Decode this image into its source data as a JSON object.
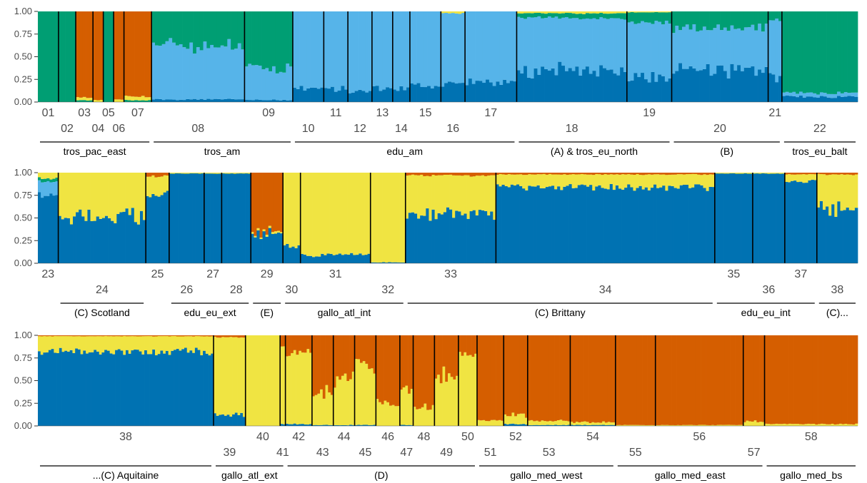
{
  "chart_data": {
    "type": "bar",
    "stacked": true,
    "normalized": true,
    "ylim": [
      0,
      1
    ],
    "yticks": [
      "1.00",
      "0.75",
      "0.50",
      "0.25",
      "0.00"
    ],
    "components": [
      {
        "color": "#0072B2"
      },
      {
        "color": "#56B4E9"
      },
      {
        "color": "#009E73"
      },
      {
        "color": "#F0E442"
      },
      {
        "color": "#D55E00"
      }
    ],
    "panels": [
      {
        "populations": [
          {
            "label": "01",
            "n": 6,
            "profile": [
              0.0,
              0.0,
              1.0,
              0.0,
              0.0
            ]
          },
          {
            "label": "02",
            "n": 5,
            "profile": [
              0.0,
              0.0,
              1.0,
              0.0,
              0.0
            ]
          },
          {
            "label": "03",
            "n": 5,
            "profile": [
              0.0,
              0.0,
              0.02,
              0.03,
              0.95
            ]
          },
          {
            "label": "04",
            "n": 3,
            "profile": [
              0.0,
              0.0,
              0.0,
              0.02,
              0.98
            ]
          },
          {
            "label": "05",
            "n": 3,
            "profile": [
              0.0,
              0.0,
              1.0,
              0.0,
              0.0
            ]
          },
          {
            "label": "06",
            "n": 3,
            "profile": [
              0.0,
              0.0,
              0.0,
              0.03,
              0.97
            ]
          },
          {
            "label": "07",
            "n": 8,
            "profile": [
              0.0,
              0.0,
              0.02,
              0.04,
              0.94
            ]
          },
          {
            "label": "08",
            "n": 27,
            "profile": [
              0.03,
              0.6,
              0.37,
              0.0,
              0.0
            ]
          },
          {
            "label": "09",
            "n": 14,
            "profile": [
              0.02,
              0.35,
              0.63,
              0.0,
              0.0
            ]
          },
          {
            "label": "10",
            "n": 9,
            "profile": [
              0.15,
              0.85,
              0.0,
              0.0,
              0.0
            ]
          },
          {
            "label": "11",
            "n": 7,
            "profile": [
              0.14,
              0.86,
              0.0,
              0.0,
              0.0
            ]
          },
          {
            "label": "12",
            "n": 7,
            "profile": [
              0.12,
              0.88,
              0.0,
              0.0,
              0.0
            ]
          },
          {
            "label": "13",
            "n": 6,
            "profile": [
              0.16,
              0.84,
              0.0,
              0.0,
              0.0
            ]
          },
          {
            "label": "14",
            "n": 5,
            "profile": [
              0.15,
              0.85,
              0.0,
              0.0,
              0.0
            ]
          },
          {
            "label": "15",
            "n": 9,
            "profile": [
              0.18,
              0.82,
              0.0,
              0.0,
              0.0
            ]
          },
          {
            "label": "16",
            "n": 7,
            "profile": [
              0.2,
              0.78,
              0.0,
              0.02,
              0.0
            ]
          },
          {
            "label": "17",
            "n": 15,
            "profile": [
              0.22,
              0.78,
              0.0,
              0.0,
              0.0
            ]
          },
          {
            "label": "18",
            "n": 32,
            "profile": [
              0.35,
              0.58,
              0.05,
              0.02,
              0.0
            ]
          },
          {
            "label": "19",
            "n": 13,
            "profile": [
              0.3,
              0.57,
              0.12,
              0.01,
              0.0
            ]
          },
          {
            "label": "20",
            "n": 28,
            "profile": [
              0.36,
              0.46,
              0.18,
              0.0,
              0.0
            ]
          },
          {
            "label": "21",
            "n": 4,
            "profile": [
              0.3,
              0.6,
              0.1,
              0.0,
              0.0
            ]
          },
          {
            "label": "22",
            "n": 22,
            "profile": [
              0.06,
              0.04,
              0.9,
              0.0,
              0.0
            ]
          }
        ],
        "groups": [
          {
            "label": "tros_pac_east",
            "from": 0,
            "to": 6
          },
          {
            "label": "tros_am",
            "from": 7,
            "to": 8
          },
          {
            "label": "edu_am",
            "from": 9,
            "to": 16
          },
          {
            "label": "(A) & tros_eu_north",
            "from": 17,
            "to": 18
          },
          {
            "label": "(B)",
            "from": 19,
            "to": 20
          },
          {
            "label": "tros_eu_balt",
            "from": 21,
            "to": 21
          }
        ]
      },
      {
        "populations": [
          {
            "label": "23",
            "n": 7,
            "profile": [
              0.76,
              0.14,
              0.04,
              0.06,
              0.0
            ]
          },
          {
            "label": "24",
            "n": 30,
            "profile": [
              0.5,
              0.0,
              0.0,
              0.5,
              0.0
            ]
          },
          {
            "label": "25",
            "n": 8,
            "profile": [
              0.76,
              0.0,
              0.0,
              0.2,
              0.04
            ]
          },
          {
            "label": "26",
            "n": 12,
            "profile": [
              0.99,
              0.0,
              0.0,
              0.01,
              0.0
            ]
          },
          {
            "label": "27",
            "n": 6,
            "profile": [
              0.99,
              0.0,
              0.0,
              0.01,
              0.0
            ]
          },
          {
            "label": "28",
            "n": 10,
            "profile": [
              0.99,
              0.0,
              0.0,
              0.01,
              0.0
            ]
          },
          {
            "label": "29",
            "n": 11,
            "profile": [
              0.32,
              0.0,
              0.0,
              0.02,
              0.66
            ]
          },
          {
            "label": "30",
            "n": 6,
            "profile": [
              0.2,
              0.0,
              0.0,
              0.8,
              0.0
            ]
          },
          {
            "label": "31",
            "n": 24,
            "profile": [
              0.09,
              0.0,
              0.0,
              0.91,
              0.0
            ]
          },
          {
            "label": "32",
            "n": 12,
            "profile": [
              0.01,
              0.0,
              0.0,
              0.99,
              0.0
            ]
          },
          {
            "label": "33",
            "n": 31,
            "profile": [
              0.55,
              0.0,
              0.0,
              0.42,
              0.03
            ]
          },
          {
            "label": "34",
            "n": 75,
            "profile": [
              0.84,
              0.0,
              0.0,
              0.14,
              0.02
            ]
          },
          {
            "label": "35",
            "n": 13,
            "profile": [
              0.99,
              0.0,
              0.0,
              0.01,
              0.0
            ]
          },
          {
            "label": "36",
            "n": 11,
            "profile": [
              0.99,
              0.0,
              0.0,
              0.01,
              0.0
            ]
          },
          {
            "label": "37",
            "n": 11,
            "profile": [
              0.9,
              0.0,
              0.0,
              0.08,
              0.02
            ]
          },
          {
            "label": "38",
            "n": 14,
            "profile": [
              0.6,
              0.0,
              0.0,
              0.38,
              0.02
            ]
          }
        ],
        "groups": [
          {
            "label": "(C) Scotland",
            "from": 1,
            "to": 1
          },
          {
            "label": "edu_eu_ext",
            "from": 3,
            "to": 5
          },
          {
            "label": "(E)",
            "from": 6,
            "to": 6
          },
          {
            "label": "gallo_atl_int",
            "from": 7,
            "to": 9
          },
          {
            "label": "(C) Brittany",
            "from": 10,
            "to": 11
          },
          {
            "label": "edu_eu_int",
            "from": 12,
            "to": 14
          },
          {
            "label": "(C)...",
            "from": 15,
            "to": 15
          }
        ]
      },
      {
        "populations": [
          {
            "label": "38",
            "n": 66,
            "profile": [
              0.82,
              0.0,
              0.0,
              0.17,
              0.01
            ]
          },
          {
            "label": "39",
            "n": 12,
            "profile": [
              0.12,
              0.0,
              0.0,
              0.86,
              0.02
            ]
          },
          {
            "label": "40",
            "n": 13,
            "profile": [
              0.0,
              0.0,
              0.0,
              1.0,
              0.0
            ]
          },
          {
            "label": "41",
            "n": 2,
            "profile": [
              0.02,
              0.0,
              0.0,
              0.88,
              0.1
            ]
          },
          {
            "label": "42",
            "n": 10,
            "profile": [
              0.02,
              0.0,
              0.0,
              0.78,
              0.2
            ]
          },
          {
            "label": "43",
            "n": 8,
            "profile": [
              0.01,
              0.0,
              0.0,
              0.35,
              0.64
            ]
          },
          {
            "label": "44",
            "n": 8,
            "profile": [
              0.01,
              0.0,
              0.0,
              0.5,
              0.49
            ]
          },
          {
            "label": "45",
            "n": 8,
            "profile": [
              0.01,
              0.0,
              0.0,
              0.66,
              0.33
            ]
          },
          {
            "label": "46",
            "n": 9,
            "profile": [
              0.0,
              0.0,
              0.0,
              0.25,
              0.75
            ]
          },
          {
            "label": "47",
            "n": 5,
            "profile": [
              0.01,
              0.0,
              0.0,
              0.4,
              0.59
            ]
          },
          {
            "label": "48",
            "n": 8,
            "profile": [
              0.0,
              0.0,
              0.0,
              0.2,
              0.8
            ]
          },
          {
            "label": "49",
            "n": 9,
            "profile": [
              0.0,
              0.0,
              0.0,
              0.55,
              0.45
            ]
          },
          {
            "label": "50",
            "n": 7,
            "profile": [
              0.0,
              0.0,
              0.0,
              0.78,
              0.22
            ]
          },
          {
            "label": "51",
            "n": 10,
            "profile": [
              0.0,
              0.0,
              0.0,
              0.06,
              0.94
            ]
          },
          {
            "label": "52",
            "n": 9,
            "profile": [
              0.02,
              0.0,
              0.0,
              0.1,
              0.88
            ]
          },
          {
            "label": "53",
            "n": 16,
            "profile": [
              0.01,
              0.0,
              0.0,
              0.05,
              0.94
            ]
          },
          {
            "label": "54",
            "n": 17,
            "profile": [
              0.01,
              0.0,
              0.0,
              0.03,
              0.96
            ]
          },
          {
            "label": "55",
            "n": 15,
            "profile": [
              0.0,
              0.0,
              0.0,
              0.01,
              0.99
            ]
          },
          {
            "label": "56",
            "n": 33,
            "profile": [
              0.0,
              0.0,
              0.0,
              0.01,
              0.99
            ]
          },
          {
            "label": "57",
            "n": 8,
            "profile": [
              0.0,
              0.0,
              0.0,
              0.05,
              0.95
            ]
          },
          {
            "label": "58",
            "n": 35,
            "profile": [
              0.0,
              0.0,
              0.0,
              0.02,
              0.98
            ]
          }
        ],
        "groups": [
          {
            "label": "...(C) Aquitaine",
            "from": 0,
            "to": 0
          },
          {
            "label": "gallo_atl_ext",
            "from": 1,
            "to": 3
          },
          {
            "label": "(D)",
            "from": 4,
            "to": 12
          },
          {
            "label": "gallo_med_west",
            "from": 13,
            "to": 16
          },
          {
            "label": "gallo_med_east",
            "from": 17,
            "to": 19
          },
          {
            "label": "gallo_med_bs",
            "from": 20,
            "to": 20
          }
        ]
      }
    ]
  }
}
